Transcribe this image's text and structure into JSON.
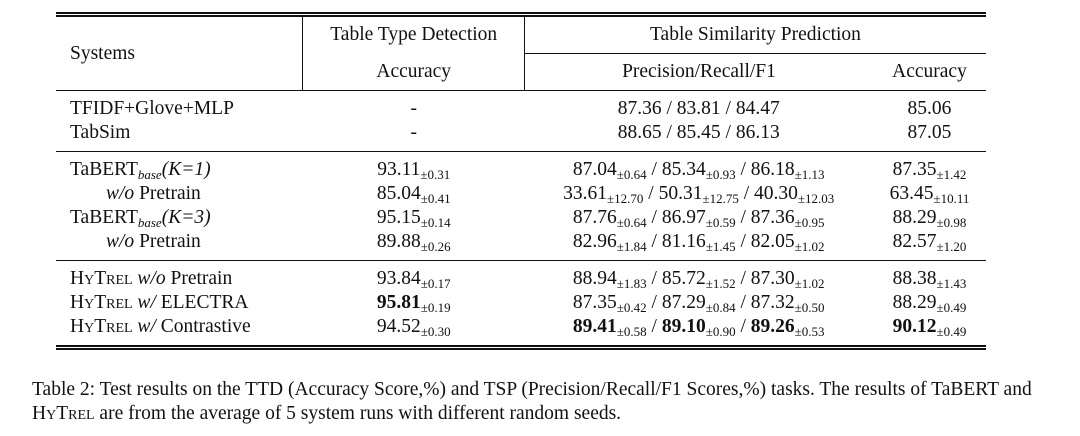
{
  "table": {
    "header": {
      "systems": "Systems",
      "ttd": "Table Type Detection",
      "tsp": "Table Similarity Prediction",
      "ttd_metric": "Accuracy",
      "prf": "Precision/Recall/F1",
      "tsp_acc": "Accuracy"
    },
    "separator": " / ",
    "groups": [
      [
        {
          "system": [
            {
              "text": "TFIDF+Glove+MLP"
            }
          ],
          "ttd": {
            "v": "-"
          },
          "prf": [
            {
              "v": "87.36"
            },
            {
              "v": "83.81"
            },
            {
              "v": "84.47"
            }
          ],
          "acc": {
            "v": "85.06"
          }
        },
        {
          "system": [
            {
              "text": "TabSim"
            }
          ],
          "ttd": {
            "v": "-"
          },
          "prf": [
            {
              "v": "88.65"
            },
            {
              "v": "85.45"
            },
            {
              "v": "86.13"
            }
          ],
          "acc": {
            "v": "87.05"
          }
        }
      ],
      [
        {
          "system": [
            {
              "text": "TaBERT"
            },
            {
              "text": "base",
              "style": "sub-it"
            },
            {
              "text": "(K=1)",
              "style": "it"
            }
          ],
          "ttd": {
            "v": "93.11",
            "pm": "±0.31"
          },
          "prf": [
            {
              "v": "87.04",
              "pm": "±0.64"
            },
            {
              "v": "85.34",
              "pm": "±0.93"
            },
            {
              "v": "86.18",
              "pm": "±1.13"
            }
          ],
          "acc": {
            "v": "87.35",
            "pm": "±1.42"
          }
        },
        {
          "indent": true,
          "system": [
            {
              "text": "w/o",
              "style": "it"
            },
            {
              "text": " Pretrain"
            }
          ],
          "ttd": {
            "v": "85.04",
            "pm": "±0.41"
          },
          "prf": [
            {
              "v": "33.61",
              "pm": "±12.70"
            },
            {
              "v": "50.31",
              "pm": "±12.75"
            },
            {
              "v": "40.30",
              "pm": "±12.03"
            }
          ],
          "acc": {
            "v": "63.45",
            "pm": "±10.11"
          }
        },
        {
          "system": [
            {
              "text": "TaBERT"
            },
            {
              "text": "base",
              "style": "sub-it"
            },
            {
              "text": "(K=3)",
              "style": "it"
            }
          ],
          "ttd": {
            "v": "95.15",
            "pm": "±0.14"
          },
          "prf": [
            {
              "v": "87.76",
              "pm": "±0.64"
            },
            {
              "v": "86.97",
              "pm": "±0.59"
            },
            {
              "v": "87.36",
              "pm": "±0.95"
            }
          ],
          "acc": {
            "v": "88.29",
            "pm": "±0.98"
          }
        },
        {
          "indent": true,
          "system": [
            {
              "text": "w/o",
              "style": "it"
            },
            {
              "text": " Pretrain"
            }
          ],
          "ttd": {
            "v": "89.88",
            "pm": "±0.26"
          },
          "prf": [
            {
              "v": "82.96",
              "pm": "±1.84"
            },
            {
              "v": "81.16",
              "pm": "±1.45"
            },
            {
              "v": "82.05",
              "pm": "±1.02"
            }
          ],
          "acc": {
            "v": "82.57",
            "pm": "±1.20"
          }
        }
      ],
      [
        {
          "system": [
            {
              "text": "HyTrel",
              "style": "sc"
            },
            {
              "text": " w/o",
              "style": "it"
            },
            {
              "text": " Pretrain"
            }
          ],
          "ttd": {
            "v": "93.84",
            "pm": "±0.17"
          },
          "prf": [
            {
              "v": "88.94",
              "pm": "±1.83"
            },
            {
              "v": "85.72",
              "pm": "±1.52"
            },
            {
              "v": "87.30",
              "pm": "±1.02"
            }
          ],
          "acc": {
            "v": "88.38",
            "pm": "±1.43"
          }
        },
        {
          "system": [
            {
              "text": "HyTrel",
              "style": "sc"
            },
            {
              "text": " w/",
              "style": "it"
            },
            {
              "text": " ELECTRA"
            }
          ],
          "ttd": {
            "v": "95.81",
            "pm": "±0.19",
            "bold": true
          },
          "prf": [
            {
              "v": "87.35",
              "pm": "±0.42"
            },
            {
              "v": "87.29",
              "pm": "±0.84"
            },
            {
              "v": "87.32",
              "pm": "±0.50"
            }
          ],
          "acc": {
            "v": "88.29",
            "pm": "±0.49"
          }
        },
        {
          "system": [
            {
              "text": "HyTrel",
              "style": "sc"
            },
            {
              "text": " w/",
              "style": "it"
            },
            {
              "text": " Contrastive"
            }
          ],
          "ttd": {
            "v": "94.52",
            "pm": "±0.30"
          },
          "prf": [
            {
              "v": "89.41",
              "pm": "±0.58",
              "bold": true
            },
            {
              "v": "89.10",
              "pm": "±0.90",
              "bold": true
            },
            {
              "v": "89.26",
              "pm": "±0.53",
              "bold": true
            }
          ],
          "acc": {
            "v": "90.12",
            "pm": "±0.49",
            "bold": true
          }
        }
      ]
    ]
  },
  "caption": [
    {
      "text": "Table 2:  Test results on the TTD (Accuracy Score,%) and TSP (Precision/Recall/F1 Scores,%) tasks.  The results of TaBERT and "
    },
    {
      "text": "HyTrel",
      "style": "sc"
    },
    {
      "text": " are from the average of 5 system runs with different random seeds."
    }
  ]
}
